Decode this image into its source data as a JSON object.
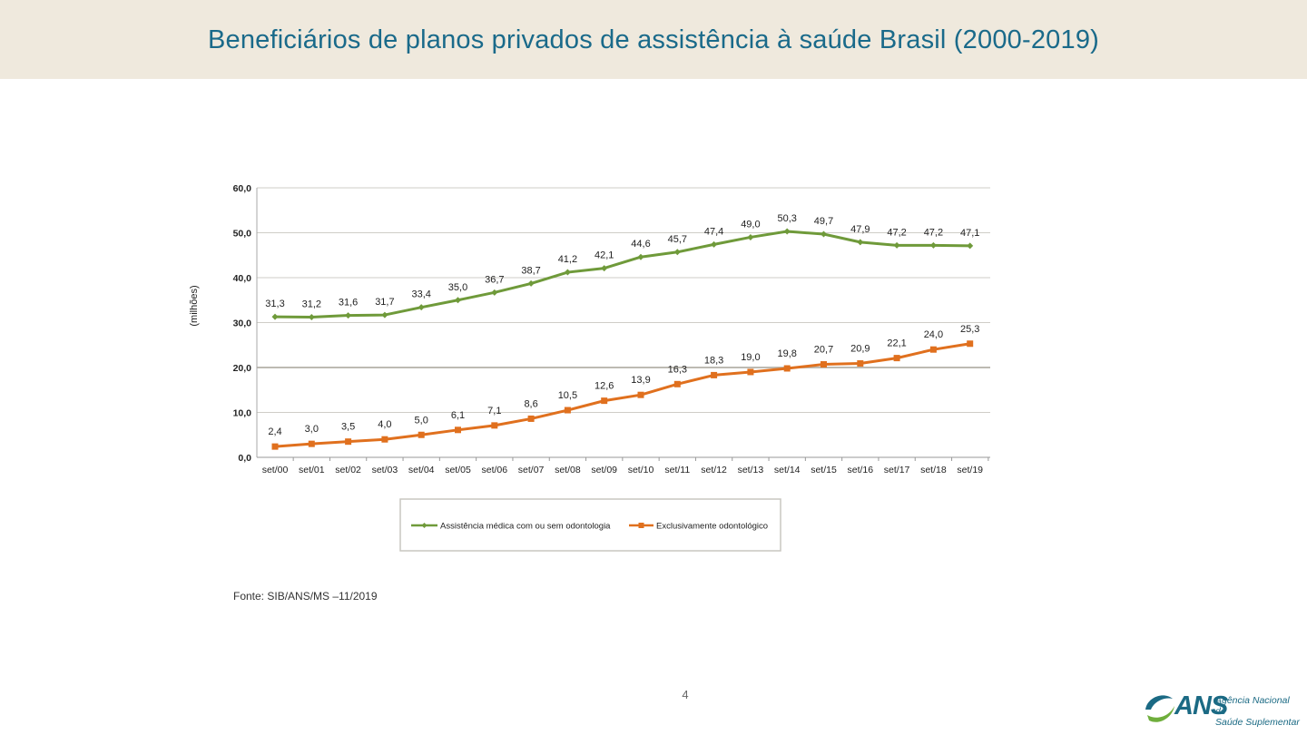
{
  "header": {
    "title": "Beneficiários de planos privados de assistência à saúde Brasil (2000-2019)"
  },
  "chart_data": {
    "type": "line",
    "title": "",
    "ylabel": "(milhões)",
    "xlabel": "",
    "ylim": [
      0,
      60
    ],
    "yticks": [
      "0,0",
      "10,0",
      "20,0",
      "30,0",
      "40,0",
      "50,0",
      "60,0"
    ],
    "categories": [
      "set/00",
      "set/01",
      "set/02",
      "set/03",
      "set/04",
      "set/05",
      "set/06",
      "set/07",
      "set/08",
      "set/09",
      "set/10",
      "set/11",
      "set/12",
      "set/13",
      "set/14",
      "set/15",
      "set/16",
      "set/17",
      "set/18",
      "set/19"
    ],
    "series": [
      {
        "name": "Assistência médica com ou sem odontologia",
        "color": "#6f9a3a",
        "marker": "diamond",
        "values": [
          31.3,
          31.2,
          31.6,
          31.7,
          33.4,
          35.0,
          36.7,
          38.7,
          41.2,
          42.1,
          44.6,
          45.7,
          47.4,
          49.0,
          50.3,
          49.7,
          47.9,
          47.2,
          47.2,
          47.1
        ],
        "labels": [
          "31,3",
          "31,2",
          "31,6",
          "31,7",
          "33,4",
          "35,0",
          "36,7",
          "38,7",
          "41,2",
          "42,1",
          "44,6",
          "45,7",
          "47,4",
          "49,0",
          "50,3",
          "49,7",
          "47,9",
          "47,2",
          "47,2",
          "47,1"
        ]
      },
      {
        "name": "Exclusivamente odontológico",
        "color": "#e0701e",
        "marker": "square",
        "values": [
          2.4,
          3.0,
          3.5,
          4.0,
          5.0,
          6.1,
          7.1,
          8.6,
          10.5,
          12.6,
          13.9,
          16.3,
          18.3,
          19.0,
          19.8,
          20.7,
          20.9,
          22.1,
          24.0,
          25.3
        ],
        "labels": [
          "2,4",
          "3,0",
          "3,5",
          "4,0",
          "5,0",
          "6,1",
          "7,1",
          "8,6",
          "10,5",
          "12,6",
          "13,9",
          "16,3",
          "18,3",
          "19,0",
          "19,8",
          "20,7",
          "20,9",
          "22,1",
          "24,0",
          "25,3"
        ]
      }
    ],
    "legend": "bottom",
    "grid": true
  },
  "footer": {
    "source": "Fonte: SIB/ANS/MS –11/2019",
    "page_number": "4"
  },
  "logo": {
    "name": "ANS",
    "line1": "Agência Nacional de",
    "line2": "Saúde Suplementar"
  }
}
